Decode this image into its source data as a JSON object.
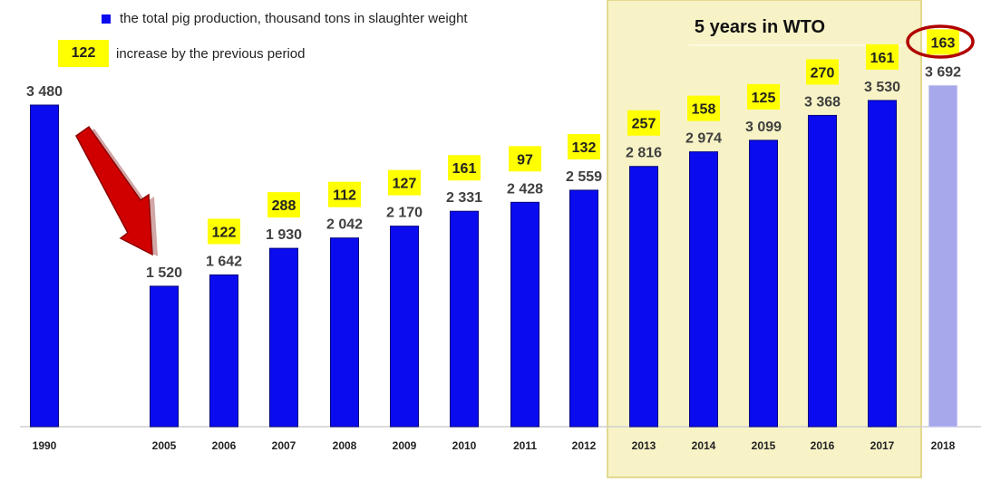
{
  "legend": {
    "series_label": "the total pig production, thousand tons in slaughter weight",
    "badge_example": "122",
    "badge_label": "increase by the previous period"
  },
  "wto_label": "5 years in WTO",
  "colors": {
    "bar": "#0b0bf0",
    "bar_highlight": "#a7a7ec",
    "badge": "#ffff00",
    "wto_panel": "#f7f3c6",
    "wto_border": "#e3d98f",
    "arrow": "#d10000",
    "ellipse": "#b00000",
    "axis": "#cfcfcf"
  },
  "chart_data": {
    "type": "bar",
    "categories": [
      "1990",
      "2005",
      "2006",
      "2007",
      "2008",
      "2009",
      "2010",
      "2011",
      "2012",
      "2013",
      "2014",
      "2015",
      "2016",
      "2017",
      "2018"
    ],
    "values": [
      3480,
      1520,
      1642,
      1930,
      2042,
      2170,
      2331,
      2428,
      2559,
      2816,
      2974,
      3099,
      3368,
      3530,
      3692
    ],
    "value_labels": [
      "3 480",
      "1 520",
      "1 642",
      "1 930",
      "2 042",
      "2 170",
      "2 331",
      "2 428",
      "2 559",
      "2 816",
      "2 974",
      "3 099",
      "3 368",
      "3 530",
      "3 692"
    ],
    "increases": [
      "",
      "",
      "122",
      "288",
      "112",
      "127",
      "161",
      "97",
      "132",
      "257",
      "158",
      "125",
      "270",
      "161",
      "163"
    ],
    "highlighted": [
      "2018"
    ],
    "wto_years": [
      "2013",
      "2014",
      "2015",
      "2016",
      "2017"
    ],
    "ylim": [
      0,
      3480
    ]
  }
}
